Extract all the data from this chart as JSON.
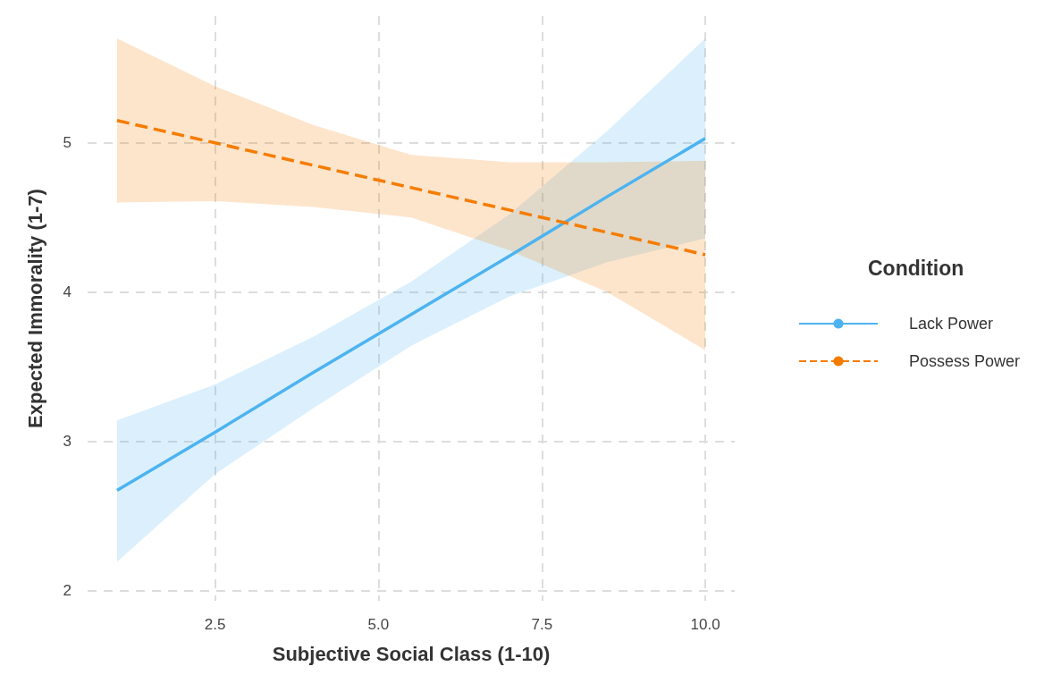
{
  "chart_data": {
    "type": "line",
    "xlabel": "Subjective Social Class (1-10)",
    "ylabel": "Expected Immorality (1-7)",
    "legend_title": "Condition",
    "legend": "right",
    "grid": true,
    "x": [
      1,
      2.5,
      4,
      5.5,
      7,
      8.5,
      10
    ],
    "xlim": [
      0.55,
      10.45
    ],
    "xticks": [
      {
        "value": 2.5,
        "label": "2.5"
      },
      {
        "value": 5,
        "label": "5.0"
      },
      {
        "value": 7.5,
        "label": "7.5"
      },
      {
        "value": 10,
        "label": "10.0"
      }
    ],
    "ylim": [
      1.93,
      5.85
    ],
    "yticks": [
      2,
      3,
      4,
      5
    ],
    "series": [
      {
        "name": "Lack Power",
        "color": "#4db3f0",
        "line_style": "solid",
        "values": [
          2.67,
          3.06,
          3.46,
          3.85,
          4.24,
          4.64,
          5.03
        ],
        "lower": [
          2.19,
          2.78,
          3.22,
          3.64,
          3.97,
          4.2,
          4.36
        ],
        "upper": [
          3.14,
          3.38,
          3.7,
          4.07,
          4.52,
          5.08,
          5.7
        ]
      },
      {
        "name": "Possess Power",
        "color": "#f57c00",
        "line_style": "dashed",
        "values": [
          5.15,
          5.0,
          4.85,
          4.7,
          4.55,
          4.4,
          4.25
        ],
        "lower": [
          4.6,
          4.61,
          4.57,
          4.5,
          4.28,
          4.0,
          3.61
        ],
        "upper": [
          5.7,
          5.38,
          5.12,
          4.92,
          4.87,
          4.87,
          4.88
        ]
      }
    ]
  }
}
